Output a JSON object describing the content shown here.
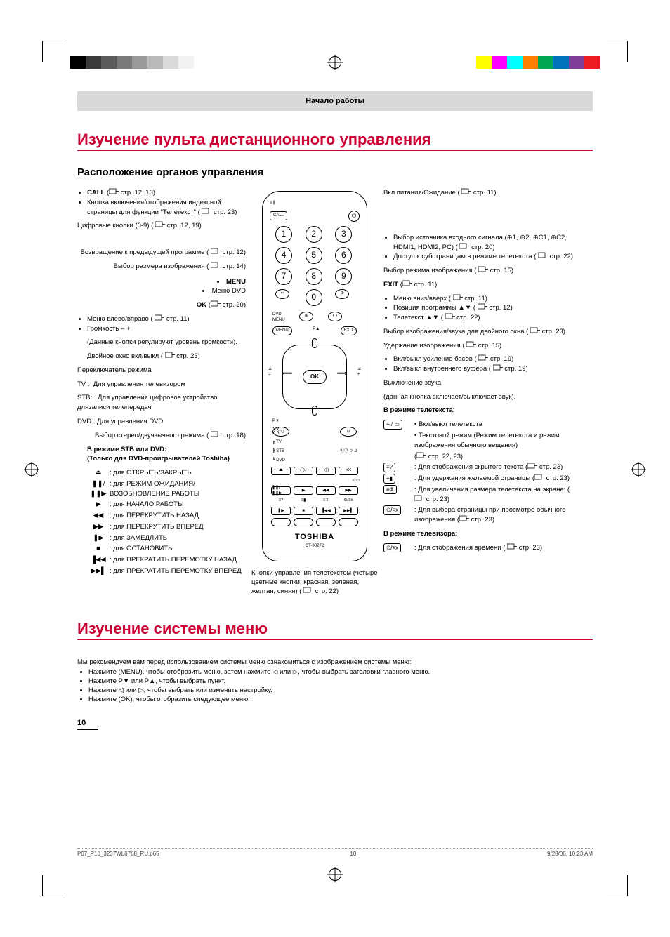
{
  "header": {
    "section": "Начало работы"
  },
  "title1": "Изучение пульта дистанционного управления",
  "subtitle1": "Расположение органов управления",
  "title2": "Изучение системы меню",
  "left": {
    "call_label": "CALL",
    "call_ref": "стр. 12, 13",
    "call_desc": "Кнопка включения/отображения индексной страницы для функции \"Телетекст\" (",
    "call_ref2": "стр. 23)",
    "digits_label": "Цифровые кнопки (0-9) (",
    "digits_ref": "стр. 12, 19)",
    "return_label": "Возвращение к предыдущей программе (",
    "return_ref": "стр. 12)",
    "size_label": "Выбор размера изображения (",
    "size_ref": "стр. 14)",
    "menu": "MENU",
    "menu_dvd": "Меню DVD",
    "ok_label": "OK",
    "ok_ref": "стр. 20)",
    "lr_label": "Меню влево/вправо (",
    "lr_ref": "стр. 11)",
    "vol_label": "Громкость – +",
    "vol_desc": "(Данные кнопки регулируют уровень громкости).",
    "twin_label": "Двойное окно вкл/выкл (",
    "twin_ref": "стр. 23)",
    "mode_switch": "Переключатель режима",
    "mode_tv": "TV :  Для управления телевизором",
    "mode_stb": "STB :  Для управления цифровое устройство длязаписи телепередач",
    "mode_dvd": "DVD : Для управления DVD",
    "stereo_label": "Выбор стерео/двуязычного режима (",
    "stereo_ref": "стр. 18)",
    "stb_heading": "В режиме STB или DVD:",
    "stb_sub": "(Только для DVD-проигрывателей Toshiba)",
    "stb_items": [
      {
        "sym": "⏏",
        "txt": ": для ОТКРЫТЬ/ЗАКРЫТЬ"
      },
      {
        "sym": "❚❚/❚❚▶",
        "txt": ": для РЕЖИМ ОЖИДАНИЯ/ ВОЗОБНОВЛЕНИЕ РАБОТЫ"
      },
      {
        "sym": "▶",
        "txt": ": для НАЧАЛО РАБОТЫ"
      },
      {
        "sym": "◀◀",
        "txt": ": для ПЕРЕКРУТИТЬ НАЗАД"
      },
      {
        "sym": "▶▶",
        "txt": ": для ПЕРЕКРУТИТЬ ВПЕРЕД"
      },
      {
        "sym": "❚▶",
        "txt": ": для ЗАМЕДЛИТЬ"
      },
      {
        "sym": "■",
        "txt": ": для ОСТАНОВИТЬ"
      },
      {
        "sym": "▐◀◀",
        "txt": ": для ПРЕКРАТИТЬ ПЕРЕМОТКУ НАЗАД"
      },
      {
        "sym": "▶▶▌",
        "txt": ": для ПРЕКРАТИТЬ ПЕРЕМОТКУ ВПЕРЕД"
      }
    ]
  },
  "mid": {
    "teletext_caption": "Кнопки управления телетекстом (четыре цветные кнопки: красная, зеленая, желтая, синяя) (",
    "teletext_ref": "стр. 22)",
    "brand": "TOSHIBA",
    "model": "CT-90272"
  },
  "right": {
    "power": "Вкл питания/Ожидание (",
    "power_ref": "стр. 11)",
    "src1": "Выбор источника входного сигнала (⊕1, ⊕2, ⊕C1, ⊕C2, HDMI1, HDMI2, PC) (",
    "src1_ref": "стр. 20)",
    "src2": "Доступ к субстраницам в режиме телетекста (",
    "src2_ref": "стр. 22)",
    "picmode": "Выбор режима изображения (",
    "picmode_ref": "стр. 15)",
    "exit_label": "EXIT",
    "exit_ref": "стр. 11)",
    "ud1": "Меню вниз/вверх (",
    "ud1_ref": "стр. 11)",
    "ud2": "Позиция программы ▲▼ (",
    "ud2_ref": "стр. 12)",
    "ud3": "Телетекст ▲▼ (",
    "ud3_ref": "стр. 22)",
    "dual": "Выбор изображения/звука для двойного окна (",
    "dual_ref": "стр. 23)",
    "hold": "Удержание изображения (",
    "hold_ref": "стр. 15)",
    "bass1": "Вкл/выкл усиление басов (",
    "bass1_ref": "стр. 19)",
    "bass2": "Вкл/выкл внутреннего вуфера (",
    "bass2_ref": "стр. 19)",
    "mute": "Выключение звука",
    "mute_desc": "(данная кнопка включает/выключает звук).",
    "tt_heading": "В режиме телетекста:",
    "tt_items": [
      {
        "sym": "≡ / ▭",
        "txt": "• Вкл/выкл телетекста"
      },
      {
        "sym": "",
        "txt": "• Текстовой режим (Режим телетекста и режим изображения обычного вещания)"
      },
      {
        "sym": "",
        "txt": "(",
        "ref": "стр. 22, 23)"
      },
      {
        "sym": "≡?",
        "txt": ": Для отображения скрытого текста (",
        "ref": "стр. 23)"
      },
      {
        "sym": "≡▮",
        "txt": ": Для удержания желаемой страницы (",
        "ref": "стр. 23)"
      },
      {
        "sym": "≡⇕",
        "txt": ": Для увеличения размера телетекста на экране: (",
        "ref": "стр. 23)"
      },
      {
        "sym": "⏲/≡x",
        "txt": ": Для выбора страницы при просмотре обычного изображения (",
        "ref": "стр. 23)"
      }
    ],
    "tv_heading": "В режиме телевизора:",
    "tv_item_sym": "⏲/≡x",
    "tv_item_txt": ": Для отображения времени (",
    "tv_item_ref": "стр. 23)"
  },
  "menu": {
    "intro": "Мы рекомендуем вам перед использованием системы меню ознакомиться с изображением системы меню:",
    "b1": "Нажмите (MENU), чтобы отобразить меню, затем нажмите ◁ или ▷, чтобы выбрать заголовки главного меню.",
    "b2": "Нажмите P▼ или P▲, чтобы выбрать пункт.",
    "b3": "Нажмите ◁ или ▷, чтобы выбрать или изменить настройку.",
    "b4": "Нажмите (OK), чтобы отобразить следующее меню."
  },
  "page_number": "10",
  "footer": {
    "file": "P07_P10_3237WL6768_RU.p65",
    "pg": "10",
    "date": "9/28/06, 10:23 AM"
  },
  "palette": {
    "accent": "#cc0033",
    "band": "#d9d9d9",
    "bar_left": [
      "#000000",
      "#3a3a3a",
      "#5a5a5a",
      "#7a7a7a",
      "#9a9a9a",
      "#bababa",
      "#dadada",
      "#f2f2f2"
    ],
    "bar_right": [
      "#ffff00",
      "#ff00ff",
      "#00ffff",
      "#ff7f00",
      "#00a651",
      "#0072bc",
      "#7f3f98",
      "#ed1c24"
    ]
  }
}
